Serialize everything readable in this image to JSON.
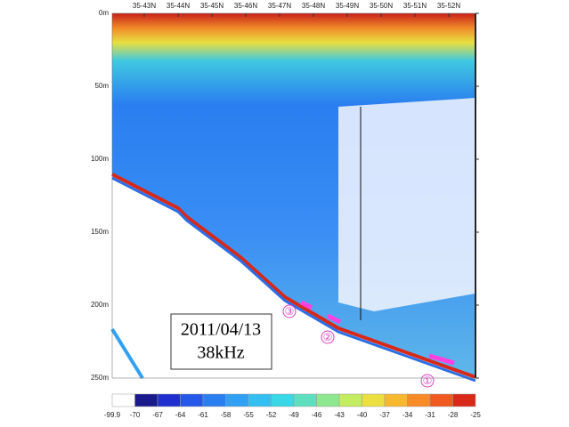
{
  "echogram": {
    "latitude_labels": [
      "35-43N",
      "35-44N",
      "35-45N",
      "35-46N",
      "35-47N",
      "35-48N",
      "35-49N",
      "35-50N",
      "35-51N",
      "35-52N"
    ],
    "depth_labels": [
      "0m",
      "50m",
      "100m",
      "150m",
      "200m",
      "250m"
    ],
    "date": "2011/04/13",
    "frequency": "38kHz",
    "markers": [
      "①",
      "②",
      "③"
    ],
    "colorbar": {
      "labels": [
        "-99.9",
        "-70",
        "-67",
        "-64",
        "-61",
        "-58",
        "-55",
        "-52",
        "-49",
        "-46",
        "-43",
        "-40",
        "-37",
        "-34",
        "-31",
        "-28",
        "-25"
      ],
      "colors": [
        "#ffffff",
        "#1a1a8c",
        "#1f2fd0",
        "#2458e8",
        "#2a7ef0",
        "#30a0f4",
        "#34bff2",
        "#3ad7e6",
        "#5ee0c0",
        "#8ee890",
        "#c4ec60",
        "#ece040",
        "#f8b830",
        "#f88a28",
        "#f05a20",
        "#d82818"
      ]
    }
  }
}
